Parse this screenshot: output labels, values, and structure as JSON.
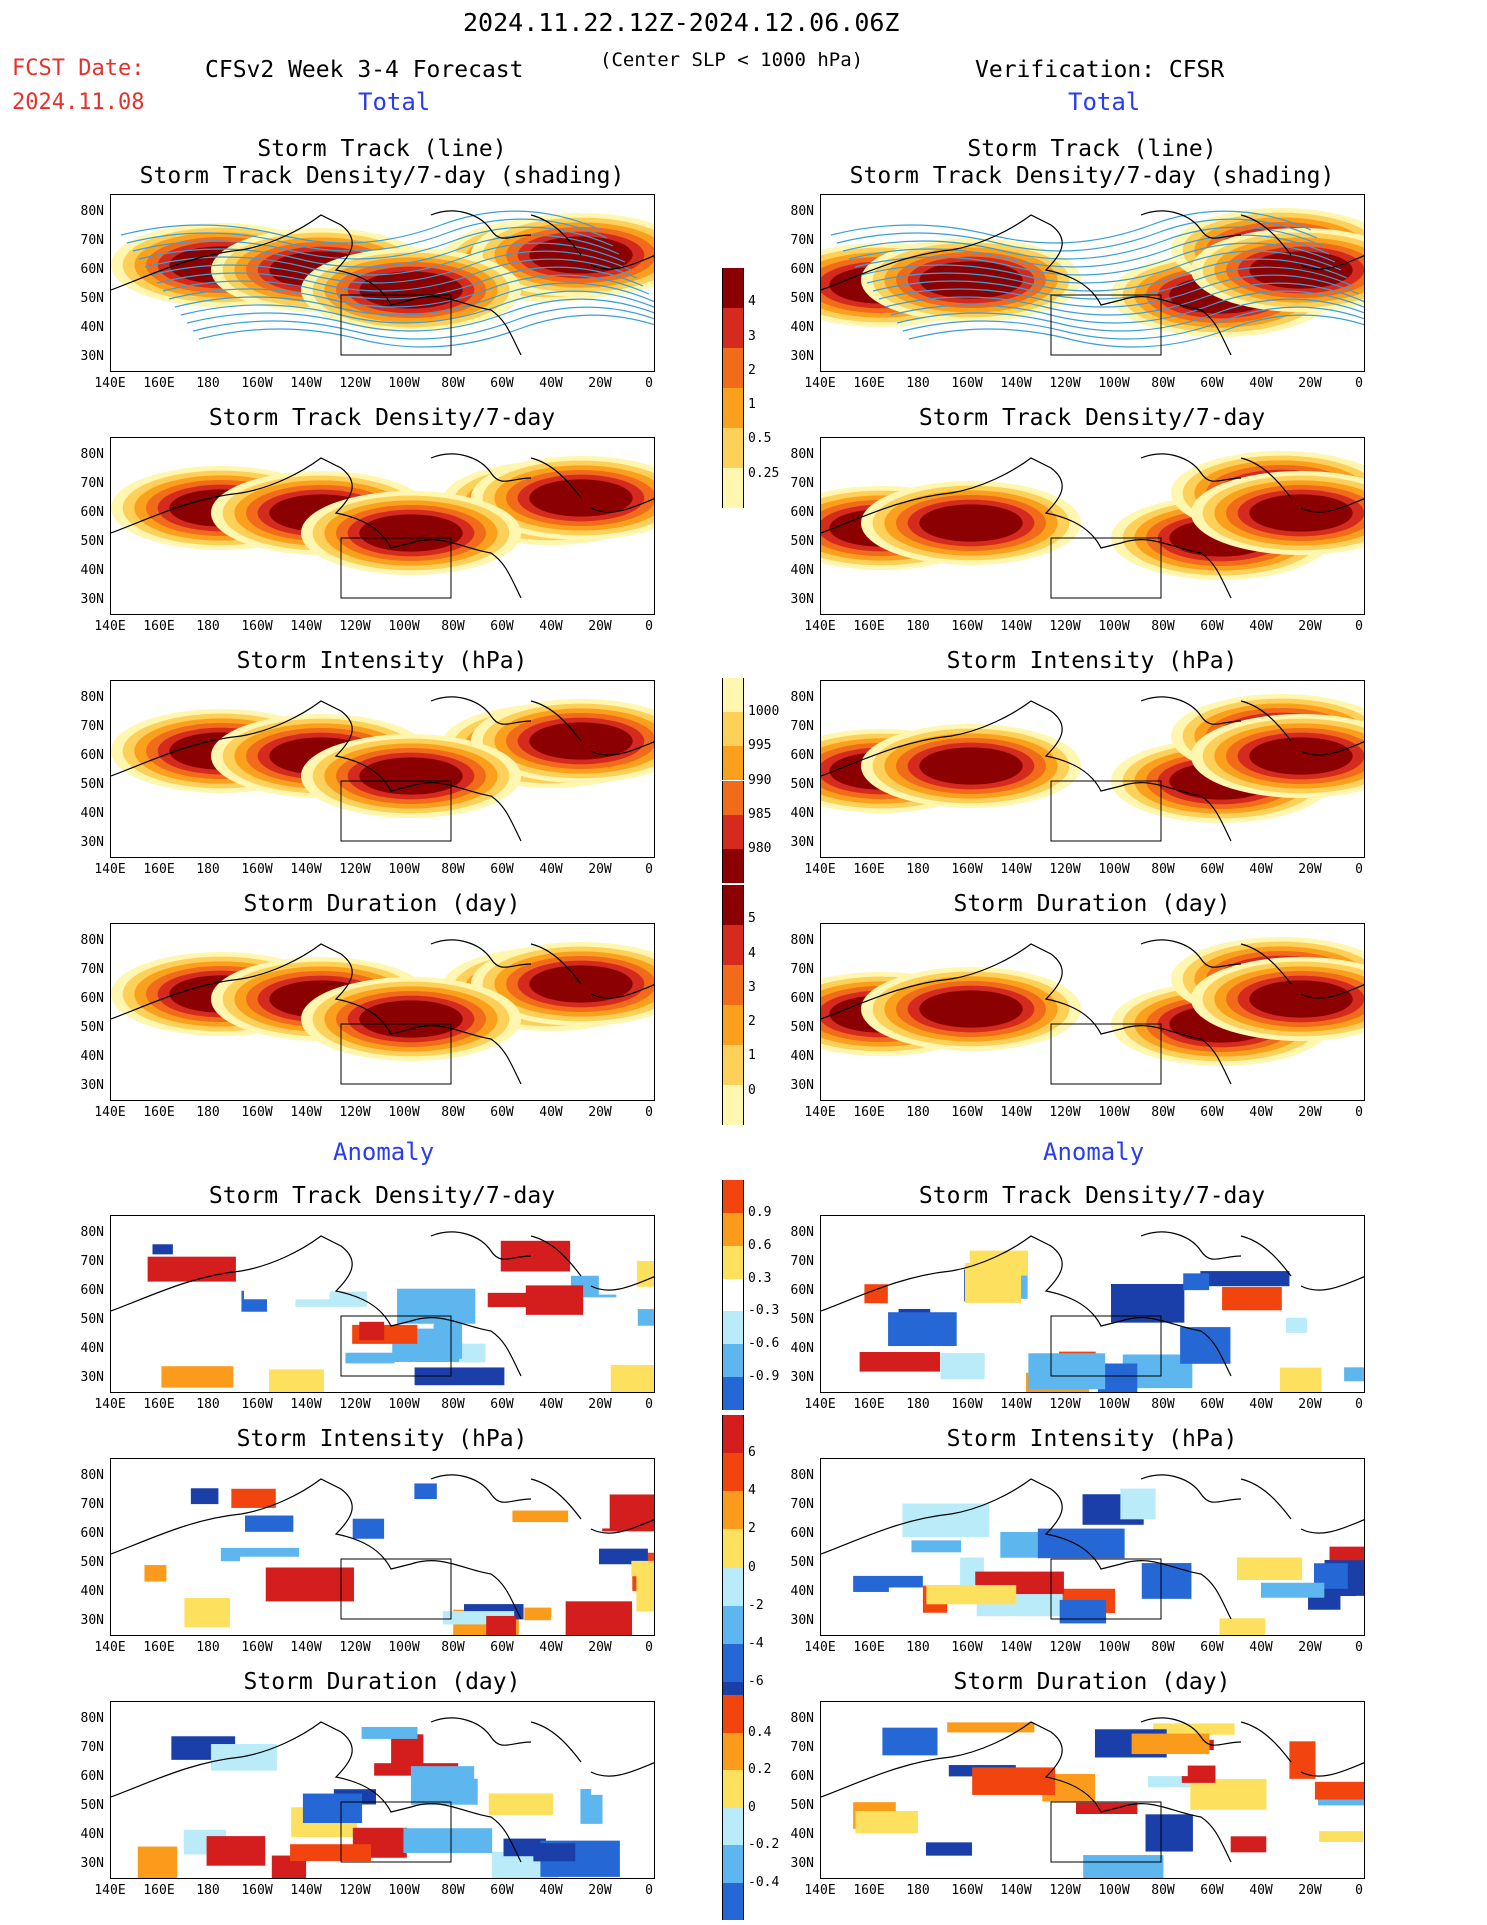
{
  "header": {
    "period": "2024.11.22.12Z-2024.12.06.06Z",
    "fcst_label": "FCST Date:",
    "fcst_date": "2024.11.08",
    "model": "CFSv2 Week 3-4 Forecast",
    "subtitle": "(Center SLP < 1000 hPa)",
    "verification": "Verification: CFSR"
  },
  "sections": {
    "total_left": "Total",
    "total_right": "Total",
    "anomaly_left": "Anomaly",
    "anomaly_right": "Anomaly"
  },
  "panel_titles": {
    "track_line": "Storm Track (line)",
    "track_shading": "Storm Track Density/7-day (shading)",
    "density": "Storm Track Density/7-day",
    "intensity": "Storm Intensity (hPa)",
    "duration": "Storm Duration (day)"
  },
  "axes": {
    "lat_labels": [
      "80N",
      "70N",
      "60N",
      "50N",
      "40N",
      "30N"
    ],
    "lon_labels": [
      "140E",
      "160E",
      "180",
      "160W",
      "140W",
      "120W",
      "100W",
      "80W",
      "60W",
      "40W",
      "20W",
      "0"
    ]
  },
  "colorbars": {
    "density_total": {
      "ticks": [
        "4",
        "3",
        "2",
        "1",
        "0.5",
        "0.25"
      ],
      "colors": [
        "#8b0000",
        "#d42b1e",
        "#f26b1b",
        "#fba01c",
        "#fdd05a",
        "#fff6b0"
      ]
    },
    "intensity_total": {
      "ticks": [
        "1000",
        "995",
        "990",
        "985",
        "980"
      ],
      "colors": [
        "#fff6b0",
        "#fdd05a",
        "#fba01c",
        "#f26b1b",
        "#d42b1e",
        "#8b0000"
      ]
    },
    "duration_total": {
      "ticks": [
        "5",
        "4",
        "3",
        "2",
        "1",
        "0"
      ],
      "colors": [
        "#8b0000",
        "#d42b1e",
        "#f26b1b",
        "#fba01c",
        "#fdd05a",
        "#fff6b0"
      ]
    },
    "density_anom": {
      "ticks": [
        "0.9",
        "0.6",
        "0.3",
        "-0.3",
        "-0.6",
        "-0.9"
      ],
      "colors": [
        "#f2440f",
        "#fb9b1c",
        "#fde05e",
        "#ffffff",
        "#b9ecf8",
        "#5db7ee",
        "#2667d6"
      ]
    },
    "intensity_anom": {
      "ticks": [
        "6",
        "4",
        "2",
        "0",
        "-2",
        "-4",
        "-6"
      ],
      "colors": [
        "#d41e1e",
        "#f2440f",
        "#fb9b1c",
        "#fde05e",
        "#b9ecf8",
        "#5db7ee",
        "#2667d6",
        "#1a3fa8"
      ]
    },
    "duration_anom": {
      "ticks": [
        "0.4",
        "0.2",
        "0",
        "-0.2",
        "-0.4"
      ],
      "colors": [
        "#f2440f",
        "#fb9b1c",
        "#fde05e",
        "#b9ecf8",
        "#5db7ee",
        "#2667d6"
      ]
    }
  }
}
